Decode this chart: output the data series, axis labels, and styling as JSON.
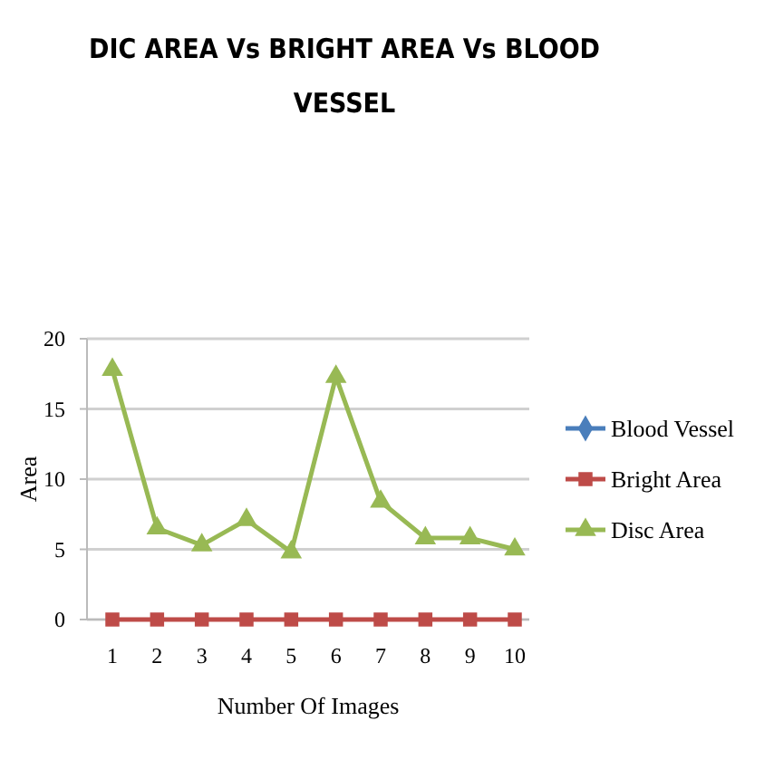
{
  "chart_data": {
    "type": "line",
    "title": "DIC AREA Vs  BRIGHT AREA Vs  BLOOD VESSEL",
    "xlabel": "Number Of Images",
    "ylabel": "Area",
    "categories": [
      "1",
      "2",
      "3",
      "4",
      "5",
      "6",
      "7",
      "8",
      "9",
      "10"
    ],
    "ylim": [
      0,
      20
    ],
    "yticks": [
      0,
      5,
      10,
      15,
      20
    ],
    "grid": "y",
    "legend": "right",
    "series": [
      {
        "name": "Blood Vessel",
        "color": "#4a7ebb",
        "marker": "diamond",
        "values": [
          null,
          null,
          null,
          null,
          null,
          null,
          null,
          null,
          null,
          null
        ]
      },
      {
        "name": "Bright Area",
        "color": "#be4b48",
        "marker": "square",
        "values": [
          0,
          0,
          0,
          0,
          0,
          0,
          0,
          0,
          0,
          0
        ]
      },
      {
        "name": "Disc Area",
        "color": "#98b954",
        "marker": "triangle",
        "values": [
          17.8,
          6.5,
          5.3,
          7.1,
          4.8,
          17.3,
          8.4,
          5.8,
          5.8,
          5.0
        ]
      }
    ]
  }
}
